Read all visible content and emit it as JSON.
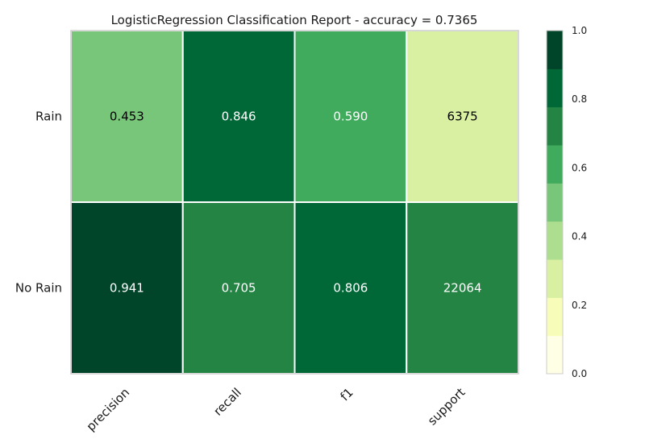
{
  "chart_data": {
    "type": "heatmap",
    "title": "LogisticRegression Classification Report - accuracy = 0.7365",
    "rows": [
      "Rain",
      "No Rain"
    ],
    "columns": [
      "precision",
      "recall",
      "f1",
      "support"
    ],
    "values": [
      [
        0.453,
        0.846,
        0.59,
        6375
      ],
      [
        0.941,
        0.705,
        0.806,
        22064
      ]
    ],
    "display_values": [
      [
        "0.453",
        "0.846",
        "0.590",
        "6375"
      ],
      [
        "0.941",
        "0.705",
        "0.806",
        "22064"
      ]
    ],
    "normalized_colors": [
      [
        0.453,
        0.846,
        0.59,
        0.224
      ],
      [
        0.941,
        0.705,
        0.806,
        0.776
      ]
    ],
    "colorbar": {
      "range": [
        0.0,
        1.0
      ],
      "ticks": [
        "0.0",
        "0.2",
        "0.4",
        "0.6",
        "0.8",
        "1.0"
      ],
      "tick_values": [
        0.0,
        0.2,
        0.4,
        0.6,
        0.8,
        1.0
      ],
      "colormap": "YlGn",
      "bins": 9,
      "colors": [
        "#ffffe5",
        "#f7fcb9",
        "#d9f0a3",
        "#addd8e",
        "#78c679",
        "#41ab5d",
        "#238443",
        "#006837",
        "#004529"
      ]
    },
    "grid": false
  }
}
